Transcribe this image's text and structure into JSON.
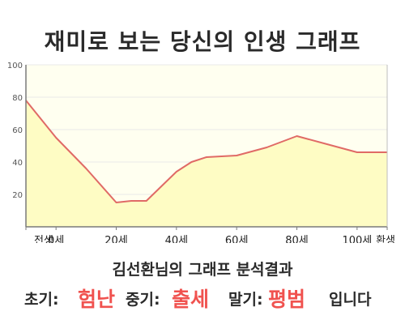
{
  "title": "재미로 보는 당신의 인생 그래프",
  "colors": {
    "line": "#e06a66",
    "fill": "#fefcc4",
    "plot_bg": "#fffff0",
    "axis": "#7a7a7a",
    "grid": "#e8e8e8",
    "accent": "#f0524f"
  },
  "chart_data": {
    "type": "area",
    "title": "재미로 보는 당신의 인생 그래프",
    "xlabel": "",
    "ylabel": "",
    "ylim": [
      0,
      100
    ],
    "yticks": [
      20,
      40,
      60,
      80,
      100
    ],
    "xlim": [
      -10,
      110
    ],
    "xticks": [
      {
        "value": -10,
        "label": "전생"
      },
      {
        "value": 0,
        "label": "0세"
      },
      {
        "value": 20,
        "label": "20세"
      },
      {
        "value": 40,
        "label": "40세"
      },
      {
        "value": 60,
        "label": "60세"
      },
      {
        "value": 80,
        "label": "80세"
      },
      {
        "value": 100,
        "label": "100세"
      },
      {
        "value": 110,
        "label": "환생"
      }
    ],
    "grid": false,
    "legend": "none",
    "series": [
      {
        "x": [
          -10,
          0,
          10,
          20,
          25,
          30,
          40,
          45,
          50,
          60,
          70,
          80,
          90,
          100,
          110
        ],
        "values": [
          78,
          55,
          36,
          15,
          16,
          16,
          34,
          40,
          43,
          44,
          49,
          56,
          51,
          46,
          46
        ]
      }
    ]
  },
  "result": {
    "heading": "김선환님의 그래프 분석결과",
    "early_label": "초기:",
    "early_value": "험난",
    "middle_label": "중기:",
    "middle_value": "출세",
    "late_label": "말기:",
    "late_value": "평범",
    "ending": "입니다"
  }
}
